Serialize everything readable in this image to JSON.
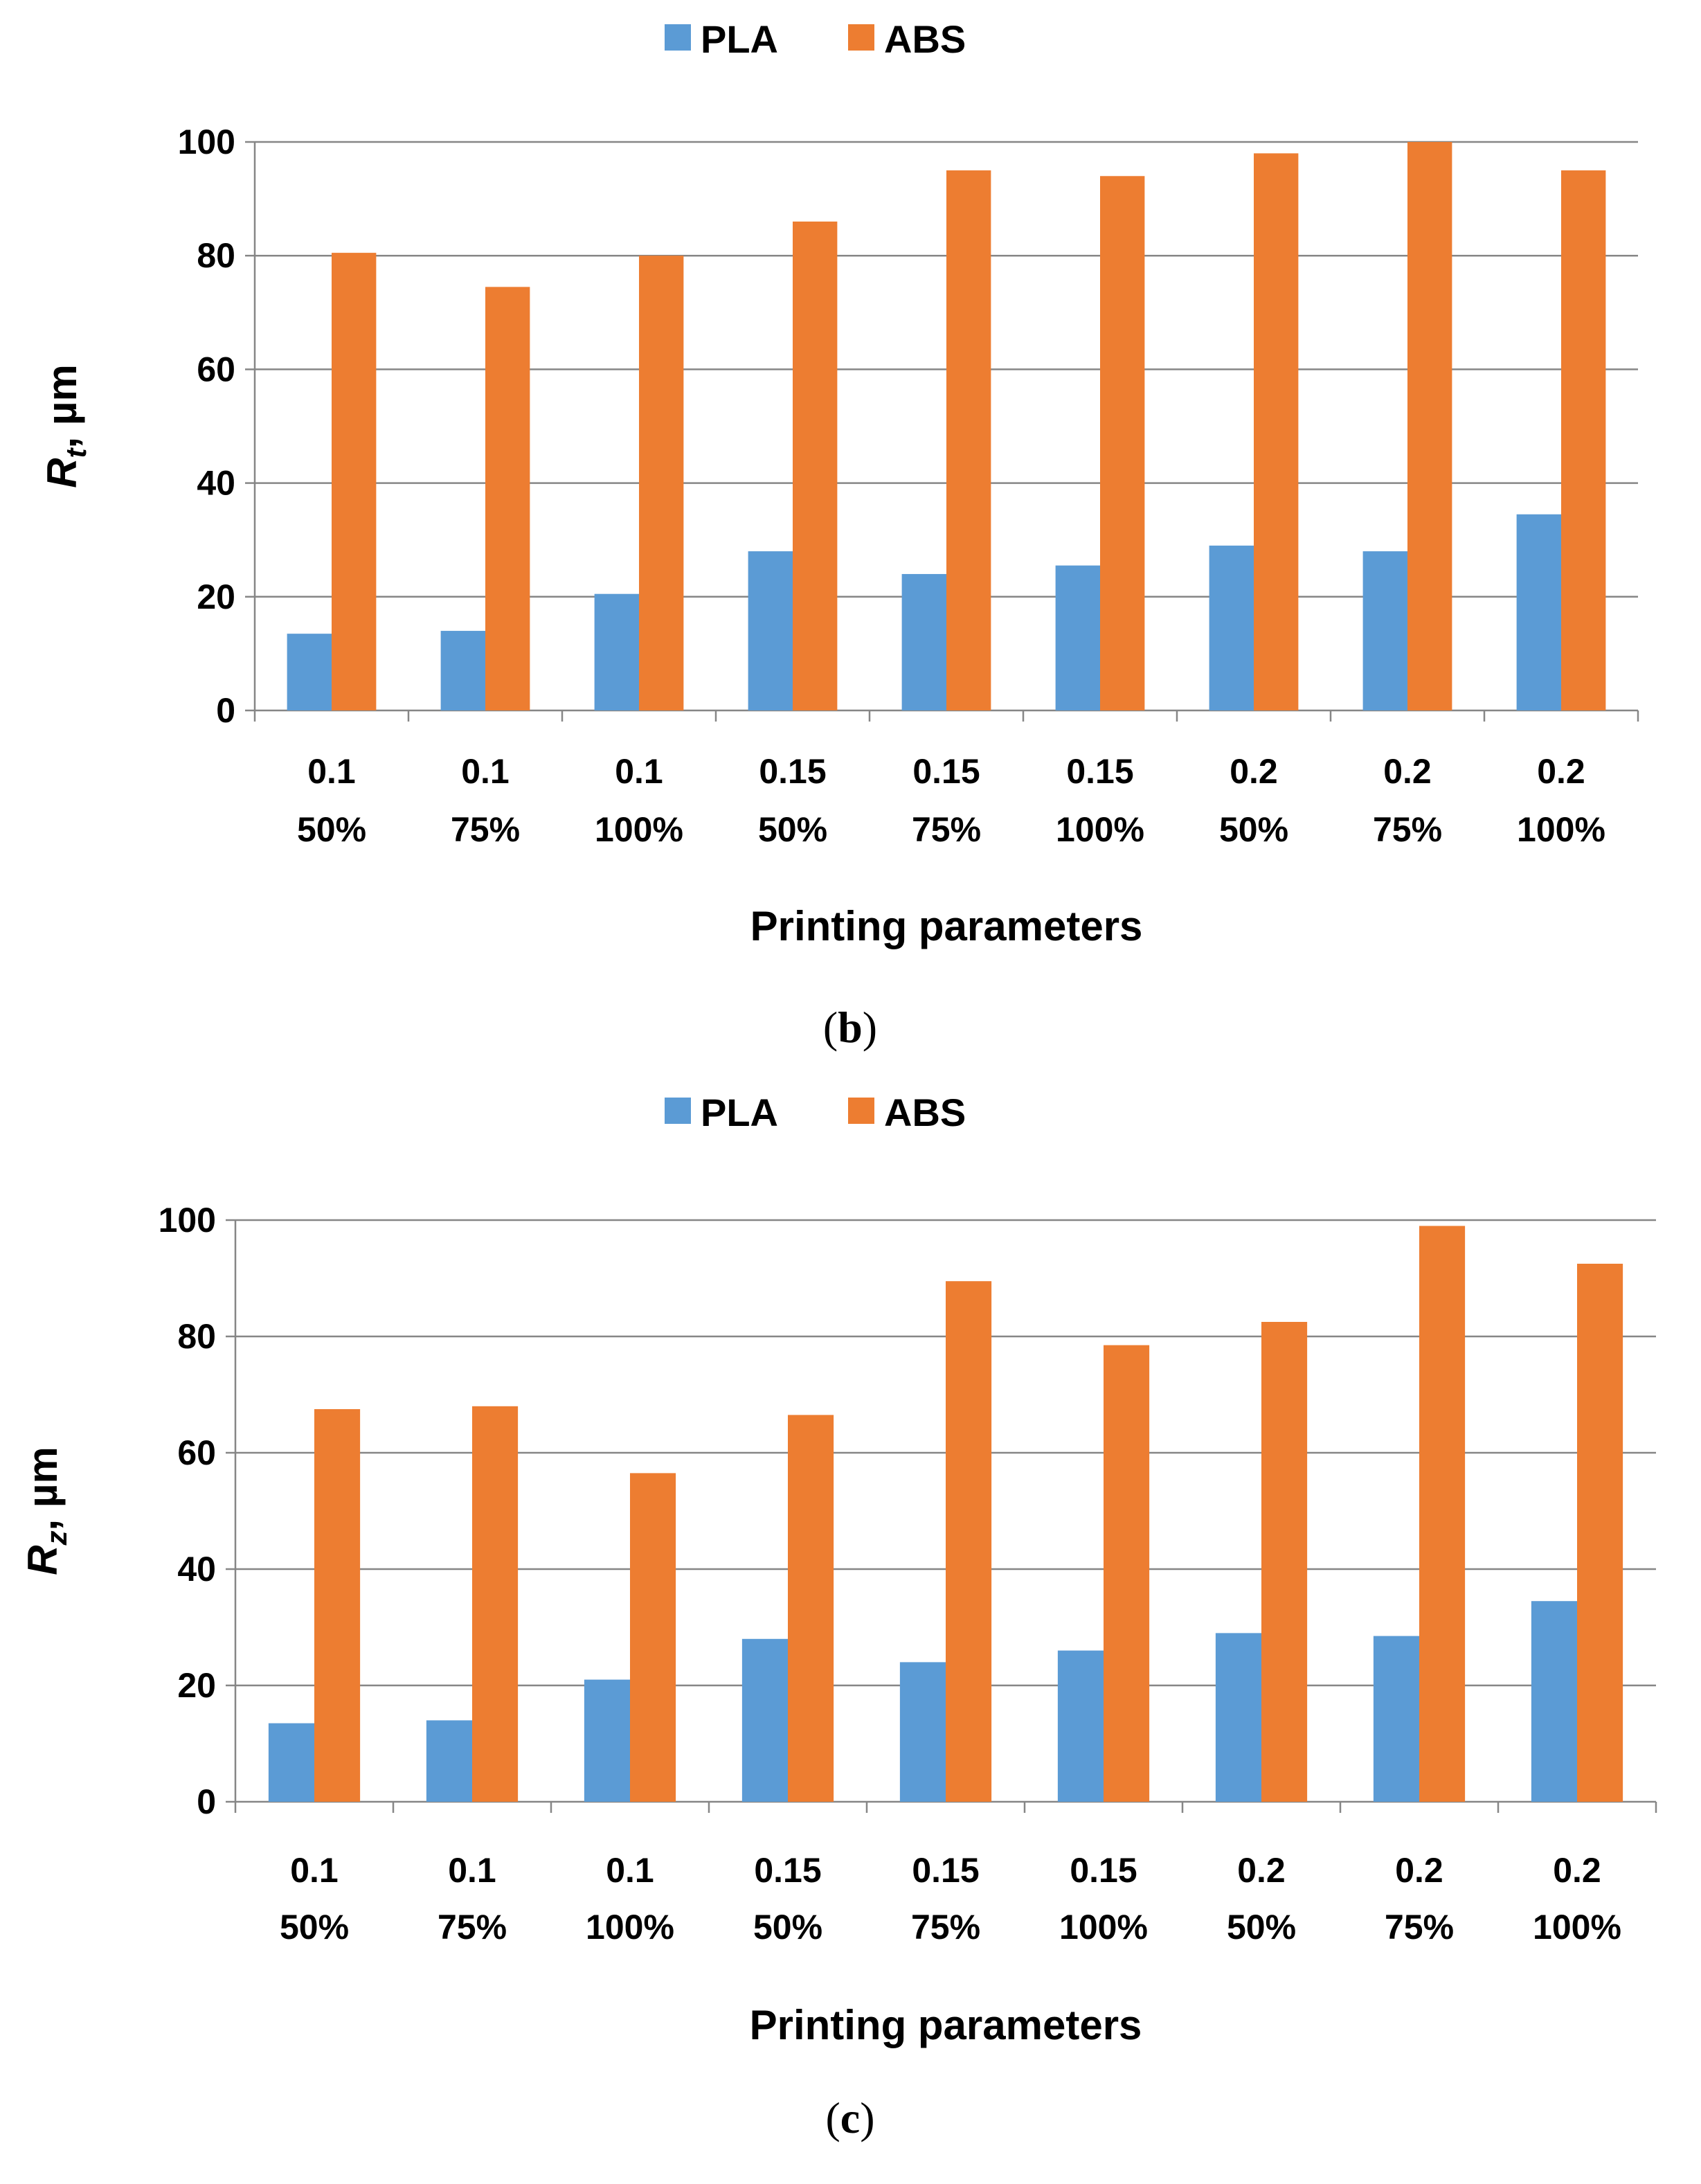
{
  "chart_data": [
    {
      "type": "bar",
      "panel": "b",
      "caption": {
        "open": "(",
        "letter": "b",
        "close": ")"
      },
      "legend": [
        "PLA",
        "ABS"
      ],
      "legend_position": "top-center",
      "categories": [
        [
          "0.1",
          "50%"
        ],
        [
          "0.1",
          "75%"
        ],
        [
          "0.1",
          "100%"
        ],
        [
          "0.15",
          "50%"
        ],
        [
          "0.15",
          "75%"
        ],
        [
          "0.15",
          "100%"
        ],
        [
          "0.2",
          "50%"
        ],
        [
          "0.2",
          "75%"
        ],
        [
          "0.2",
          "100%"
        ]
      ],
      "series": [
        {
          "name": "PLA",
          "color": "#5B9BD5",
          "values": [
            13.5,
            14,
            20.5,
            28,
            24,
            25.5,
            29,
            28,
            34.5
          ]
        },
        {
          "name": "ABS",
          "color": "#ED7D31",
          "values": [
            80.5,
            74.5,
            80,
            86,
            95,
            94,
            98,
            100,
            95
          ]
        }
      ],
      "ylabel": {
        "var": "R",
        "sub": "t",
        "unit": ", µm"
      },
      "xlabel": "Printing parameters",
      "yticks": [
        0,
        20,
        40,
        60,
        80,
        100
      ],
      "ylim": [
        0,
        100
      ],
      "grid": true
    },
    {
      "type": "bar",
      "panel": "c",
      "caption": {
        "open": "(",
        "letter": "c",
        "close": ")"
      },
      "legend": [
        "PLA",
        "ABS"
      ],
      "legend_position": "top-center",
      "categories": [
        [
          "0.1",
          "50%"
        ],
        [
          "0.1",
          "75%"
        ],
        [
          "0.1",
          "100%"
        ],
        [
          "0.15",
          "50%"
        ],
        [
          "0.15",
          "75%"
        ],
        [
          "0.15",
          "100%"
        ],
        [
          "0.2",
          "50%"
        ],
        [
          "0.2",
          "75%"
        ],
        [
          "0.2",
          "100%"
        ]
      ],
      "series": [
        {
          "name": "PLA",
          "color": "#5B9BD5",
          "values": [
            13.5,
            14,
            21,
            28,
            24,
            26,
            29,
            28.5,
            34.5
          ]
        },
        {
          "name": "ABS",
          "color": "#ED7D31",
          "values": [
            67.5,
            68,
            56.5,
            66.5,
            89.5,
            78.5,
            82.5,
            99,
            92.5
          ]
        }
      ],
      "ylabel": {
        "var": "R",
        "sub": "z",
        "unit": ", µm"
      },
      "xlabel": "Printing parameters",
      "yticks": [
        0,
        20,
        40,
        60,
        80,
        100
      ],
      "ylim": [
        0,
        100
      ],
      "grid": true
    }
  ]
}
